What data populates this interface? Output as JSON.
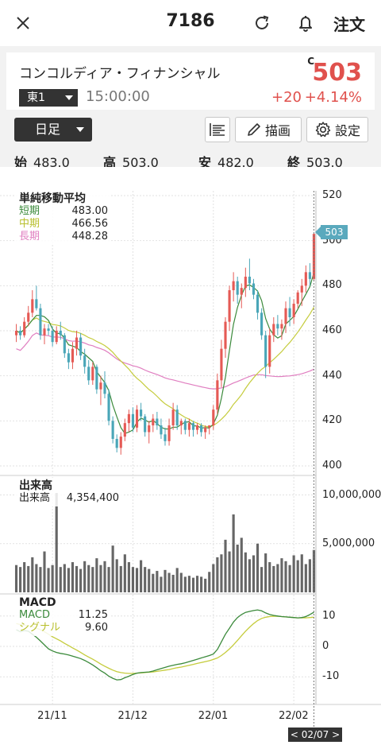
{
  "header": {
    "title": "7186",
    "order_label": "注文",
    "close_icon": "close-icon",
    "refresh_icon": "refresh-icon",
    "bell_icon": "bell-icon"
  },
  "stock": {
    "name": "コンコルディア・フィナンシャル",
    "market": "東1",
    "time": "15:00:00",
    "mark": "C",
    "price": "503",
    "change": "+20",
    "change_pct": "+4.14%"
  },
  "toolbar": {
    "period": "日足",
    "draw_label": "描画",
    "settings_label": "設定"
  },
  "ohlc": {
    "open_label": "始",
    "open": "483.0",
    "high_label": "高",
    "high": "503.0",
    "low_label": "安",
    "low": "482.0",
    "close_label": "終",
    "close": "503.0"
  },
  "legends": {
    "sma": {
      "title": "単純移動平均",
      "short_label": "短期",
      "short": "483.00",
      "mid_label": "中期",
      "mid": "466.56",
      "long_label": "長期",
      "long": "448.28"
    },
    "volume": {
      "title": "出来高",
      "label": "出来高",
      "value": "4,354,400"
    },
    "macd": {
      "title": "MACD",
      "macd_label": "MACD",
      "macd": "11.25",
      "signal_label": "シグナル",
      "signal": "9.60"
    }
  },
  "current_tag": "503",
  "date_tag": "< 02/07 >",
  "chart_data": {
    "type": "candlestick",
    "price_axis": {
      "ticks": [
        "520",
        "500",
        "480",
        "460",
        "440",
        "420",
        "400"
      ],
      "ylim": [
        400,
        520
      ]
    },
    "volume_axis": {
      "ticks": [
        "10,000,000",
        "5,000,000"
      ]
    },
    "macd_axis": {
      "ticks": [
        "10",
        "0",
        "-10"
      ],
      "ylim": [
        -17,
        17
      ]
    },
    "x_labels": [
      "21/11",
      "21/12",
      "22/01",
      "22/02"
    ],
    "x_label_index": [
      9,
      29,
      49,
      69
    ],
    "colors": {
      "up": "#e55a55",
      "down": "#4aa6b8",
      "short": "#3b8a3b",
      "mid": "#c5cc3c",
      "long": "#e07ec0",
      "volume": "#666666",
      "macd": "#3b8a3b",
      "signal": "#c5cc3c"
    },
    "candles": [
      [
        458,
        463,
        455,
        460
      ],
      [
        460,
        462,
        456,
        458
      ],
      [
        458,
        466,
        457,
        464
      ],
      [
        464,
        471,
        462,
        468
      ],
      [
        468,
        478,
        466,
        474
      ],
      [
        474,
        480,
        469,
        470
      ],
      [
        470,
        472,
        456,
        458
      ],
      [
        458,
        463,
        454,
        461
      ],
      [
        461,
        463,
        458,
        460
      ],
      [
        460,
        462,
        453,
        455
      ],
      [
        455,
        462,
        454,
        460
      ],
      [
        460,
        464,
        456,
        458
      ],
      [
        458,
        459,
        448,
        450
      ],
      [
        450,
        452,
        443,
        446
      ],
      [
        446,
        455,
        443,
        452
      ],
      [
        452,
        460,
        449,
        457
      ],
      [
        457,
        459,
        447,
        449
      ],
      [
        449,
        452,
        441,
        444
      ],
      [
        444,
        447,
        436,
        438
      ],
      [
        438,
        446,
        436,
        444
      ],
      [
        444,
        445,
        432,
        434
      ],
      [
        434,
        440,
        427,
        437
      ],
      [
        437,
        442,
        430,
        432
      ],
      [
        432,
        434,
        418,
        420
      ],
      [
        420,
        422,
        410,
        412
      ],
      [
        412,
        414,
        406,
        408
      ],
      [
        408,
        415,
        405,
        413
      ],
      [
        413,
        421,
        411,
        419
      ],
      [
        419,
        425,
        415,
        423
      ],
      [
        423,
        426,
        415,
        417
      ],
      [
        417,
        427,
        415,
        425
      ],
      [
        425,
        428,
        420,
        422
      ],
      [
        422,
        423,
        413,
        415
      ],
      [
        415,
        420,
        410,
        418
      ],
      [
        418,
        423,
        415,
        421
      ],
      [
        421,
        424,
        416,
        418
      ],
      [
        418,
        421,
        412,
        414
      ],
      [
        414,
        417,
        409,
        411
      ],
      [
        411,
        421,
        409,
        418
      ],
      [
        418,
        428,
        416,
        425
      ],
      [
        425,
        427,
        416,
        418
      ],
      [
        418,
        421,
        414,
        420
      ],
      [
        420,
        421,
        414,
        416
      ],
      [
        416,
        421,
        413,
        419
      ],
      [
        419,
        420,
        413,
        416
      ],
      [
        416,
        419,
        414,
        418
      ],
      [
        418,
        419,
        413,
        415
      ],
      [
        415,
        418,
        412,
        417
      ],
      [
        417,
        418,
        414,
        418
      ],
      [
        418,
        427,
        416,
        425
      ],
      [
        425,
        441,
        423,
        438
      ],
      [
        438,
        456,
        435,
        452
      ],
      [
        452,
        466,
        448,
        464
      ],
      [
        464,
        480,
        460,
        478
      ],
      [
        478,
        486,
        473,
        482
      ],
      [
        482,
        484,
        472,
        476
      ],
      [
        476,
        481,
        470,
        479
      ],
      [
        479,
        488,
        475,
        484
      ],
      [
        484,
        492,
        478,
        481
      ],
      [
        481,
        483,
        474,
        476
      ],
      [
        476,
        478,
        465,
        468
      ],
      [
        468,
        470,
        456,
        458
      ],
      [
        458,
        460,
        439,
        444
      ],
      [
        444,
        461,
        441,
        458
      ],
      [
        458,
        466,
        455,
        463
      ],
      [
        463,
        467,
        458,
        461
      ],
      [
        461,
        465,
        456,
        463
      ],
      [
        463,
        473,
        459,
        470
      ],
      [
        470,
        475,
        462,
        466
      ],
      [
        466,
        474,
        463,
        472
      ],
      [
        472,
        478,
        470,
        477
      ],
      [
        477,
        483,
        471,
        480
      ],
      [
        480,
        489,
        477,
        486
      ],
      [
        486,
        490,
        480,
        483
      ],
      [
        483,
        503,
        482,
        503
      ]
    ],
    "volume": [
      2.8,
      2.6,
      3.1,
      2.7,
      3.6,
      2.9,
      2.6,
      4.2,
      2.5,
      2.8,
      10.2,
      2.6,
      2.9,
      2.5,
      3.1,
      2.7,
      2.4,
      3.2,
      2.8,
      2.6,
      3.5,
      2.8,
      3.2,
      2.6,
      4.8,
      3.4,
      2.7,
      3.9,
      3.1,
      2.6,
      2.5,
      3.3,
      2.6,
      2.4,
      1.9,
      2.2,
      1.6,
      2.3,
      2.0,
      1.8,
      2.5,
      2.0,
      1.6,
      1.7,
      1.5,
      1.7,
      1.6,
      1.4,
      2.1,
      2.9,
      3.6,
      3.9,
      5.4,
      4.2,
      8.0,
      4.9,
      5.6,
      4.1,
      3.4,
      3.8,
      5.0,
      2.6,
      4.0,
      3.1,
      2.7,
      2.9,
      3.5,
      3.2,
      2.8,
      3.8,
      3.3,
      3.9,
      2.9,
      3.4,
      4.35
    ],
    "macd": [
      5.5,
      4.8,
      5.2,
      5.0,
      4.0,
      3.0,
      1.8,
      0.5,
      -0.8,
      -1.5,
      -2.0,
      -2.3,
      -2.5,
      -2.8,
      -3.2,
      -3.6,
      -4.0,
      -4.6,
      -5.3,
      -6.1,
      -7.0,
      -8.0,
      -8.8,
      -9.8,
      -10.5,
      -11.0,
      -10.9,
      -10.3,
      -9.8,
      -9.2,
      -8.8,
      -8.6,
      -8.5,
      -8.4,
      -8.1,
      -7.7,
      -7.3,
      -6.9,
      -6.5,
      -6.2,
      -5.9,
      -5.7,
      -5.4,
      -5.0,
      -4.6,
      -4.2,
      -3.8,
      -3.4,
      -3.0,
      -2.5,
      -1.0,
      1.5,
      4.0,
      6.0,
      8.0,
      9.5,
      10.5,
      11.2,
      11.5,
      11.8,
      12.0,
      11.7,
      11.0,
      10.5,
      10.2,
      10.0,
      9.8,
      9.7,
      9.6,
      9.5,
      9.4,
      9.5,
      9.8,
      10.5,
      11.25
    ],
    "signal": [
      7.5,
      7.2,
      7.0,
      6.8,
      6.5,
      6.0,
      5.5,
      4.8,
      4.0,
      3.2,
      2.5,
      1.8,
      1.0,
      0.3,
      -0.5,
      -1.2,
      -2.0,
      -2.8,
      -3.5,
      -4.2,
      -5.0,
      -5.8,
      -6.5,
      -7.2,
      -7.8,
      -8.3,
      -8.6,
      -8.8,
      -8.9,
      -8.9,
      -8.8,
      -8.7,
      -8.6,
      -8.5,
      -8.4,
      -8.2,
      -8.0,
      -7.8,
      -7.6,
      -7.3,
      -7.0,
      -6.8,
      -6.5,
      -6.2,
      -5.9,
      -5.6,
      -5.3,
      -5.0,
      -4.7,
      -4.3,
      -3.8,
      -3.0,
      -2.0,
      -0.8,
      0.5,
      2.0,
      3.5,
      5.0,
      6.3,
      7.5,
      8.5,
      9.2,
      9.6,
      9.8,
      9.9,
      9.9,
      9.8,
      9.7,
      9.6,
      9.5,
      9.4,
      9.4,
      9.4,
      9.5,
      9.6
    ]
  }
}
